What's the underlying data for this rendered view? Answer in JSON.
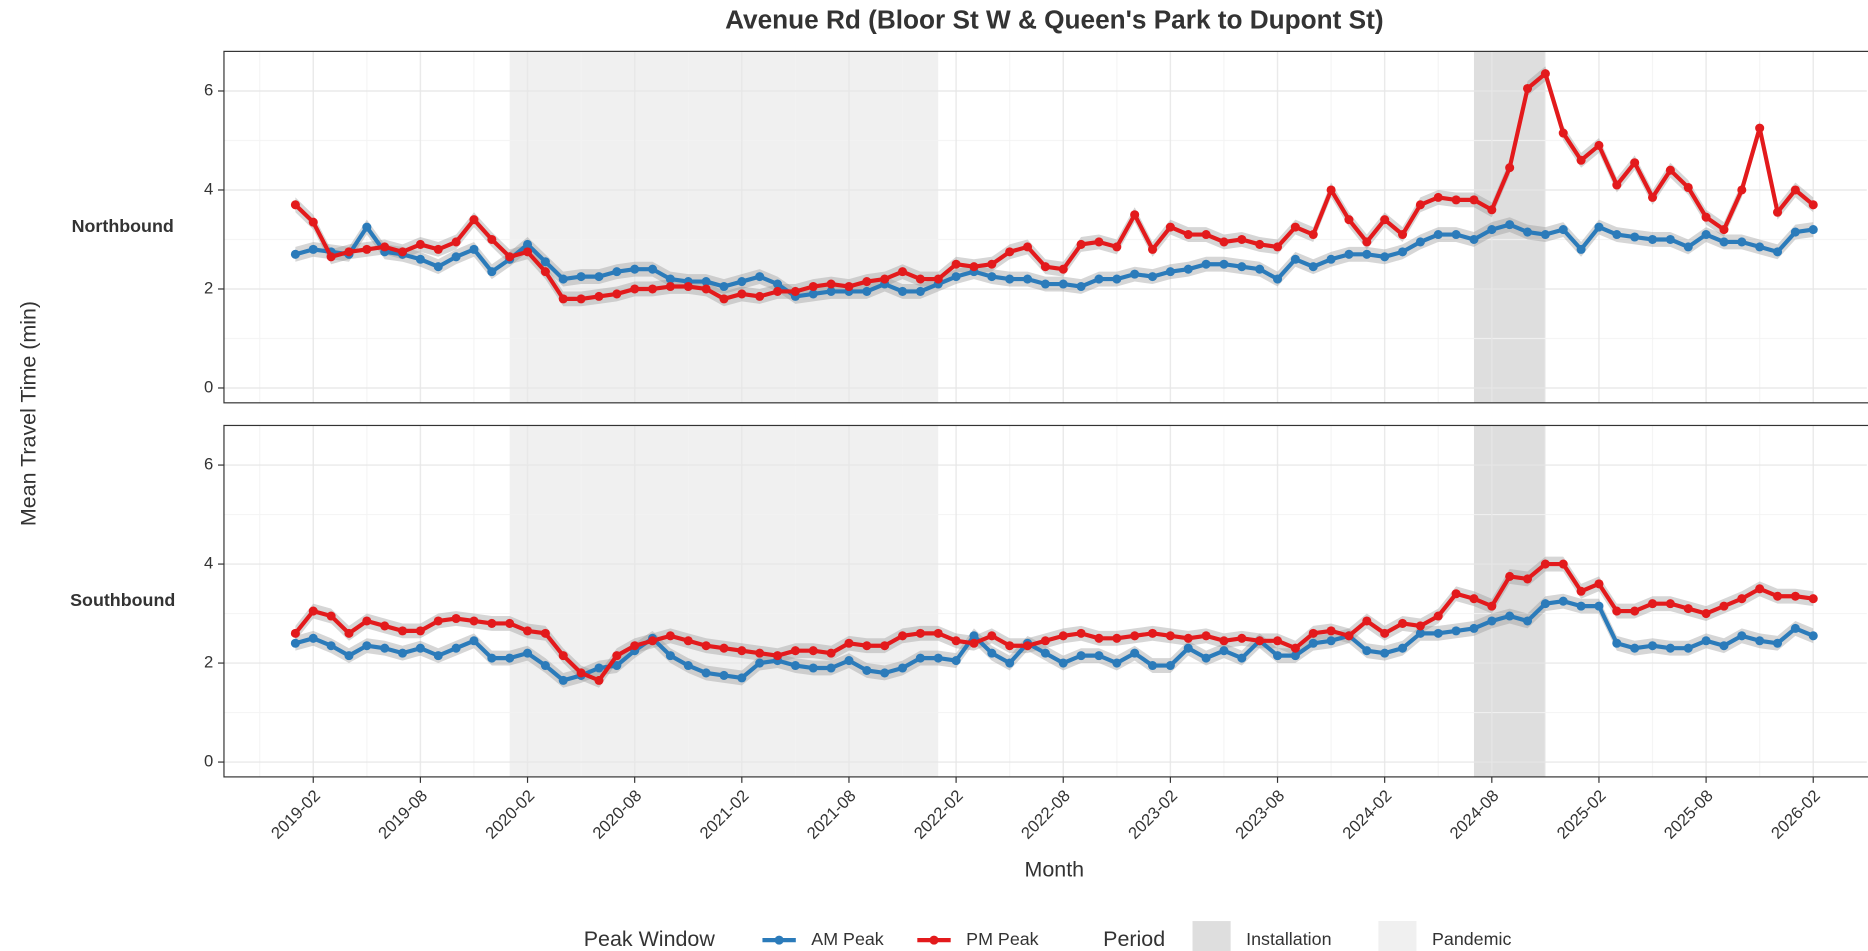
{
  "chart_data": {
    "type": "line",
    "title": "Avenue Rd (Bloor St W & Queen's Park to Dupont St)",
    "x_label": "Month",
    "y_label": "Mean Travel Time (min)",
    "x": [
      "2019-01",
      "2019-02",
      "2019-03",
      "2019-04",
      "2019-05",
      "2019-06",
      "2019-07",
      "2019-08",
      "2019-09",
      "2019-10",
      "2019-11",
      "2019-12",
      "2020-01",
      "2020-02",
      "2020-03",
      "2020-04",
      "2020-05",
      "2020-06",
      "2020-07",
      "2020-08",
      "2020-09",
      "2020-10",
      "2020-11",
      "2020-12",
      "2021-01",
      "2021-02",
      "2021-03",
      "2021-04",
      "2021-05",
      "2021-06",
      "2021-07",
      "2021-08",
      "2021-09",
      "2021-10",
      "2021-11",
      "2021-12",
      "2022-01",
      "2022-02",
      "2022-03",
      "2022-04",
      "2022-05",
      "2022-06",
      "2022-07",
      "2022-08",
      "2022-09",
      "2022-10",
      "2022-11",
      "2022-12",
      "2023-01",
      "2023-02",
      "2023-03",
      "2023-04",
      "2023-05",
      "2023-06",
      "2023-07",
      "2023-08",
      "2023-09",
      "2023-10",
      "2023-11",
      "2023-12",
      "2024-01",
      "2024-02",
      "2024-03",
      "2024-04",
      "2024-05",
      "2024-06",
      "2024-07",
      "2024-08",
      "2024-09",
      "2024-10",
      "2024-11",
      "2024-12",
      "2025-01",
      "2025-02",
      "2025-03",
      "2025-04",
      "2025-05",
      "2025-06",
      "2025-07",
      "2025-08",
      "2025-09",
      "2025-10",
      "2025-11",
      "2025-12",
      "2026-01",
      "2026-02"
    ],
    "xlim": [
      "2018-09",
      "2026-05"
    ],
    "xticks": [
      "2019-02",
      "2019-08",
      "2020-02",
      "2020-08",
      "2021-02",
      "2021-08",
      "2022-02",
      "2022-08",
      "2023-02",
      "2023-08",
      "2024-02",
      "2024-08",
      "2025-02",
      "2025-08",
      "2026-02"
    ],
    "minor_xticks": [
      "2018-11",
      "2019-05",
      "2019-11",
      "2020-05",
      "2020-11",
      "2021-05",
      "2021-11",
      "2022-05",
      "2022-11",
      "2023-05",
      "2023-11",
      "2024-05",
      "2024-11",
      "2025-05",
      "2025-11"
    ],
    "ylim": [
      -0.3,
      6.8
    ],
    "yticks": [
      0,
      2,
      4,
      6
    ],
    "minor_yticks": [
      1,
      3,
      5
    ],
    "grid": true,
    "legend_position": "bottom",
    "legend_title": "Peak Window",
    "shading_title": "Period",
    "shading": [
      {
        "name": "Installation",
        "color": "#dedede",
        "start": "2024-07",
        "end": "2024-11"
      },
      {
        "name": "Pandemic",
        "color": "#f0f0f0",
        "start": "2020-01",
        "end": "2022-01"
      }
    ],
    "panels": [
      {
        "label": "Northbound",
        "series": [
          {
            "name": "AM Peak",
            "color": "#2b7bba",
            "error": 0.15,
            "values": [
              2.7,
              2.8,
              2.75,
              2.7,
              3.25,
              2.75,
              2.7,
              2.6,
              2.45,
              2.65,
              2.8,
              2.35,
              2.6,
              2.9,
              2.55,
              2.2,
              2.25,
              2.25,
              2.35,
              2.4,
              2.4,
              2.2,
              2.15,
              2.15,
              2.05,
              2.15,
              2.25,
              2.1,
              1.85,
              1.9,
              1.95,
              1.95,
              1.95,
              2.1,
              1.95,
              1.95,
              2.1,
              2.25,
              2.35,
              2.25,
              2.2,
              2.2,
              2.1,
              2.1,
              2.05,
              2.2,
              2.2,
              2.3,
              2.25,
              2.35,
              2.4,
              2.5,
              2.5,
              2.45,
              2.4,
              2.2,
              2.6,
              2.45,
              2.6,
              2.7,
              2.7,
              2.65,
              2.75,
              2.95,
              3.1,
              3.1,
              3.0,
              3.2,
              3.3,
              3.15,
              3.1,
              3.2,
              2.8,
              3.25,
              3.1,
              3.05,
              3.0,
              3.0,
              2.85,
              3.1,
              2.95,
              2.95,
              2.85,
              2.75,
              3.15,
              3.2
            ]
          },
          {
            "name": "PM Peak",
            "color": "#e31a1c",
            "error": 0.15,
            "values": [
              3.7,
              3.35,
              2.65,
              2.75,
              2.8,
              2.85,
              2.75,
              2.9,
              2.8,
              2.95,
              3.4,
              3.0,
              2.65,
              2.75,
              2.35,
              1.8,
              1.8,
              1.85,
              1.9,
              2.0,
              2.0,
              2.05,
              2.05,
              2.0,
              1.8,
              1.9,
              1.85,
              1.95,
              1.95,
              2.05,
              2.1,
              2.05,
              2.15,
              2.2,
              2.35,
              2.2,
              2.2,
              2.5,
              2.45,
              2.5,
              2.75,
              2.85,
              2.45,
              2.4,
              2.9,
              2.95,
              2.85,
              3.5,
              2.8,
              3.25,
              3.1,
              3.1,
              2.95,
              3.0,
              2.9,
              2.85,
              3.25,
              3.1,
              4.0,
              3.4,
              2.95,
              3.4,
              3.1,
              3.7,
              3.85,
              3.8,
              3.8,
              3.6,
              4.45,
              6.05,
              6.35,
              5.15,
              4.6,
              4.9,
              4.1,
              4.55,
              3.85,
              4.4,
              4.05,
              3.45,
              3.2,
              4.0,
              5.25,
              3.55,
              4.0,
              3.7
            ]
          }
        ]
      },
      {
        "label": "Southbound",
        "series": [
          {
            "name": "AM Peak",
            "color": "#2b7bba",
            "error": 0.15,
            "values": [
              2.4,
              2.5,
              2.35,
              2.15,
              2.35,
              2.3,
              2.2,
              2.3,
              2.15,
              2.3,
              2.45,
              2.1,
              2.1,
              2.2,
              1.95,
              1.65,
              1.75,
              1.9,
              1.95,
              2.25,
              2.5,
              2.15,
              1.95,
              1.8,
              1.75,
              1.7,
              2.0,
              2.05,
              1.95,
              1.9,
              1.9,
              2.05,
              1.85,
              1.8,
              1.9,
              2.1,
              2.1,
              2.05,
              2.55,
              2.2,
              2.0,
              2.4,
              2.2,
              2.0,
              2.15,
              2.15,
              2.0,
              2.2,
              1.95,
              1.95,
              2.3,
              2.1,
              2.25,
              2.1,
              2.45,
              2.15,
              2.15,
              2.4,
              2.45,
              2.55,
              2.25,
              2.2,
              2.3,
              2.6,
              2.6,
              2.65,
              2.7,
              2.85,
              2.95,
              2.85,
              3.2,
              3.25,
              3.15,
              3.15,
              2.4,
              2.3,
              2.35,
              2.3,
              2.3,
              2.45,
              2.35,
              2.55,
              2.45,
              2.4,
              2.7,
              2.55
            ]
          },
          {
            "name": "PM Peak",
            "color": "#e31a1c",
            "error": 0.15,
            "values": [
              2.6,
              3.05,
              2.95,
              2.6,
              2.85,
              2.75,
              2.65,
              2.65,
              2.85,
              2.9,
              2.85,
              2.8,
              2.8,
              2.65,
              2.6,
              2.15,
              1.8,
              1.65,
              2.15,
              2.35,
              2.45,
              2.55,
              2.45,
              2.35,
              2.3,
              2.25,
              2.2,
              2.15,
              2.25,
              2.25,
              2.2,
              2.4,
              2.35,
              2.35,
              2.55,
              2.6,
              2.6,
              2.45,
              2.4,
              2.55,
              2.35,
              2.35,
              2.45,
              2.55,
              2.6,
              2.5,
              2.5,
              2.55,
              2.6,
              2.55,
              2.5,
              2.55,
              2.45,
              2.5,
              2.45,
              2.45,
              2.3,
              2.6,
              2.65,
              2.55,
              2.85,
              2.6,
              2.8,
              2.75,
              2.95,
              3.4,
              3.3,
              3.15,
              3.75,
              3.7,
              4.0,
              4.0,
              3.45,
              3.6,
              3.05,
              3.05,
              3.2,
              3.2,
              3.1,
              3.0,
              3.15,
              3.3,
              3.5,
              3.35,
              3.35,
              3.3
            ]
          }
        ]
      }
    ]
  }
}
